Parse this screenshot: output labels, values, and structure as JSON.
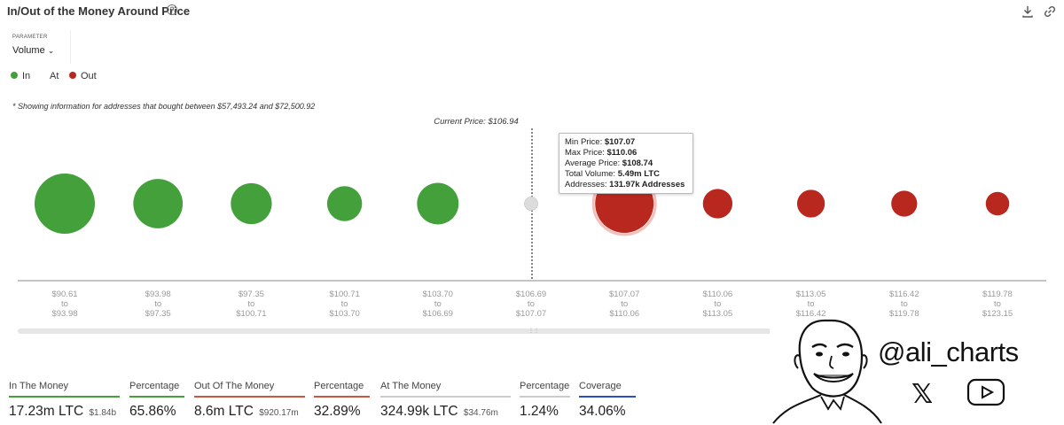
{
  "header": {
    "title": "In/Out of the Money Around Price",
    "help_icon": "question-circle-icon",
    "download_icon": "download-icon",
    "link_icon": "link-icon"
  },
  "parameter": {
    "label": "PARAMETER",
    "value": "Volume"
  },
  "legend": {
    "items": [
      {
        "label": "In",
        "color": "#43a03a"
      },
      {
        "label": "At",
        "color": ""
      },
      {
        "label": "Out",
        "color": "#b9281f"
      }
    ]
  },
  "note": "* Showing information for addresses that bought between $57,493.24 and $72,500.92",
  "current_price_label": "Current Price: $106.94",
  "tooltip": {
    "min_label": "Min Price:",
    "min_value": "$107.07",
    "max_label": "Max Price:",
    "max_value": "$110.06",
    "avg_label": "Average Price:",
    "avg_value": "$108.74",
    "vol_label": "Total Volume:",
    "vol_value": "5.49m LTC",
    "addr_label": "Addresses:",
    "addr_value": "131.97k Addresses"
  },
  "chart_data": {
    "type": "scatter",
    "title": "",
    "xlabel": "",
    "ylabel": "",
    "current_price": 106.94,
    "colors": {
      "in": "#43a03a",
      "at": "#dcdcdc",
      "out": "#b9281f"
    },
    "buckets": [
      {
        "low": "$90.61",
        "high": "$93.98",
        "status": "in",
        "relative_size": 1.0
      },
      {
        "low": "$93.98",
        "high": "$97.35",
        "status": "in",
        "relative_size": 0.82
      },
      {
        "low": "$97.35",
        "high": "$100.71",
        "status": "in",
        "relative_size": 0.68
      },
      {
        "low": "$100.71",
        "high": "$103.70",
        "status": "in",
        "relative_size": 0.58
      },
      {
        "low": "$103.70",
        "high": "$106.69",
        "status": "in",
        "relative_size": 0.69
      },
      {
        "low": "$106.69",
        "high": "$107.07",
        "status": "at",
        "relative_size": 0.22
      },
      {
        "low": "$107.07",
        "high": "$110.06",
        "status": "out",
        "relative_size": 0.97,
        "highlighted": true
      },
      {
        "low": "$110.06",
        "high": "$113.05",
        "status": "out",
        "relative_size": 0.49
      },
      {
        "low": "$113.05",
        "high": "$116.42",
        "status": "out",
        "relative_size": 0.46
      },
      {
        "low": "$116.42",
        "high": "$119.78",
        "status": "out",
        "relative_size": 0.43
      },
      {
        "low": "$119.78",
        "high": "$123.15",
        "status": "out",
        "relative_size": 0.39
      }
    ],
    "connector": "to"
  },
  "stats": [
    {
      "label": "In The Money",
      "value": "17.23m LTC",
      "sub": "$1.84b",
      "color": "#43a03a"
    },
    {
      "label": "Percentage",
      "value": "65.86%",
      "sub": "",
      "color": "#43a03a"
    },
    {
      "label": "Out Of The Money",
      "value": "8.6m LTC",
      "sub": "$920.17m",
      "color": "#d0553f"
    },
    {
      "label": "Percentage",
      "value": "32.89%",
      "sub": "",
      "color": "#d0553f"
    },
    {
      "label": "At The Money",
      "value": "324.99k LTC",
      "sub": "$34.76m",
      "color": "#cccccc"
    },
    {
      "label": "Percentage",
      "value": "1.24%",
      "sub": "",
      "color": "#cccccc"
    },
    {
      "label": "Coverage",
      "value": "34.06%",
      "sub": "",
      "color": "#2c4fc8"
    }
  ],
  "watermark": {
    "handle": "@ali_charts",
    "x_icon": "x-logo-icon",
    "youtube_icon": "youtube-icon",
    "avatar": "cartoon-face-avatar"
  }
}
